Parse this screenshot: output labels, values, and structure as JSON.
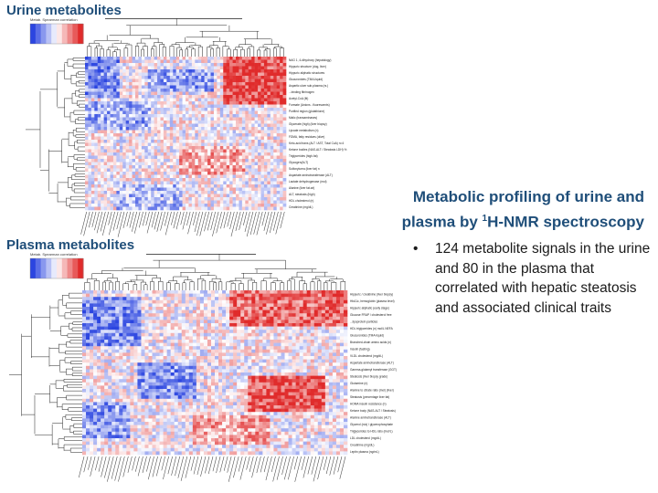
{
  "panels": {
    "urine": {
      "title": "Urine metabolites",
      "color_key_title": "Metab. Spearman correlation",
      "metabolite_labels": [
        "NAG 1, 4-dihydroxy (hepatology)",
        "Hippuric structure (dog, liver)",
        "Hippuric aliphatic structures",
        "Glucuronides (TMA-liquid)",
        "Aspartic ulcer sub-plasma (rs.)",
        "...binding fibrinogen",
        "Acetyl-CoA (fit)",
        "Formate (Anions - fluorescents)",
        "Purified region (glutathione)",
        "Malic (transaminases)",
        "Glycerate (high) (liver biopsy)",
        "Lipoate metabolism (n)",
        "FDMA, fatty residues (olive)",
        "Keto-acid trans (ALT / AST, Total CoA) n=4",
        "Ketone bodies (NAS-ALT / Steatosis LDH) %",
        "Triglycerides (high-fat)",
        "Glycogen(ALT)",
        "Sulfonylurea (liver fat) n",
        "Aspartate aminotransferase (ALT)",
        "Lactate dehydrogenase (mol)",
        "Alanine (liver fat-wt)",
        "ALT, steatosis (high)",
        "HDL cholesterol (n)",
        "Creatinine (mg/dL)"
      ]
    },
    "plasma": {
      "title": "Plasma metabolites",
      "color_key_title": "Metab. Spearman correlation",
      "metabolite_labels": [
        "Hippuric / creatinine (liver biopsy)",
        "HbA1c, hemoglobin (plasma level)",
        "Hippuric aliphatic (early stage)",
        "Glucose FRAP / cholesterol free",
        "...lipoprotein particles",
        "HDL triglycerides (n) mol/L NEFA",
        "Glucuronides (TMA-liquid)",
        "Branched-chain amino acids (n)",
        "Insulin (fasting)",
        "VLDL cholesterol (mg/dL)",
        "Aspartate aminotransferase (ALT)",
        "Gamma-glutamyl transferase (GGT)",
        "Steatosis (liver biopsy grade)",
        "Glutamine (n)",
        "Alanine to citrate ratio (mol) (liver)",
        "Steatosis (percentage liver fat)",
        "HOMA insulin resistance (n)",
        "Ketone body (NAS-ALT / Steatosis)",
        "Alanine aminotransferase (ALT)",
        "Glycerol (n/a) / glycerophosphate",
        "Triglycerides to HDL ratio (mol/L)",
        "LDL cholesterol (mg/dL)",
        "Creatinine (mg/dL)",
        "Leptin plasma (ng/mL)"
      ]
    }
  },
  "side": {
    "title_part1": "Metabolic profiling of urine and",
    "title_part2": "plasma by ",
    "title_sup": "1",
    "title_part3": "H-NMR spectroscopy"
  },
  "bullets": [
    {
      "marker": "•",
      "text": "124 metabolite signals in the urine and 80 in the plasma that correlated with hepatic steatosis and associated clinical traits"
    }
  ],
  "colors": {
    "title": "#1f4e79",
    "negative": "#2b45e0",
    "positive": "#e02b2b",
    "neutral": "#ffffff"
  }
}
